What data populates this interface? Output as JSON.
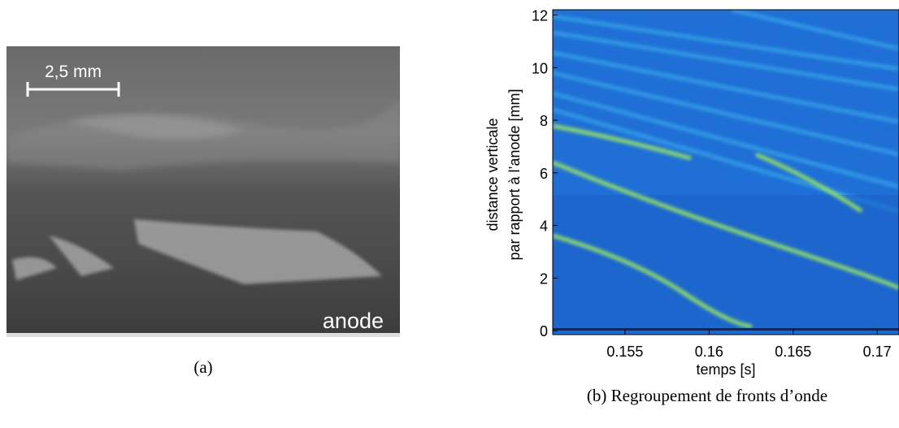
{
  "panel_a": {
    "scale_label": "2,5 mm",
    "annotation": "anode",
    "caption": "(a)"
  },
  "chart_data": {
    "type": "image",
    "xlabel": "temps [s]",
    "ylabel": [
      "distance verticale",
      "par rapport à l’anode [mm]"
    ],
    "xlim": [
      0.1507,
      0.1713
    ],
    "ylim": [
      -0.15,
      12.2
    ],
    "xticks": [
      0.155,
      0.16,
      0.165,
      0.17
    ],
    "yticks": [
      0,
      2,
      4,
      6,
      8,
      10,
      12
    ]
  },
  "caption": "(b) Regroupement de fronts d’onde"
}
